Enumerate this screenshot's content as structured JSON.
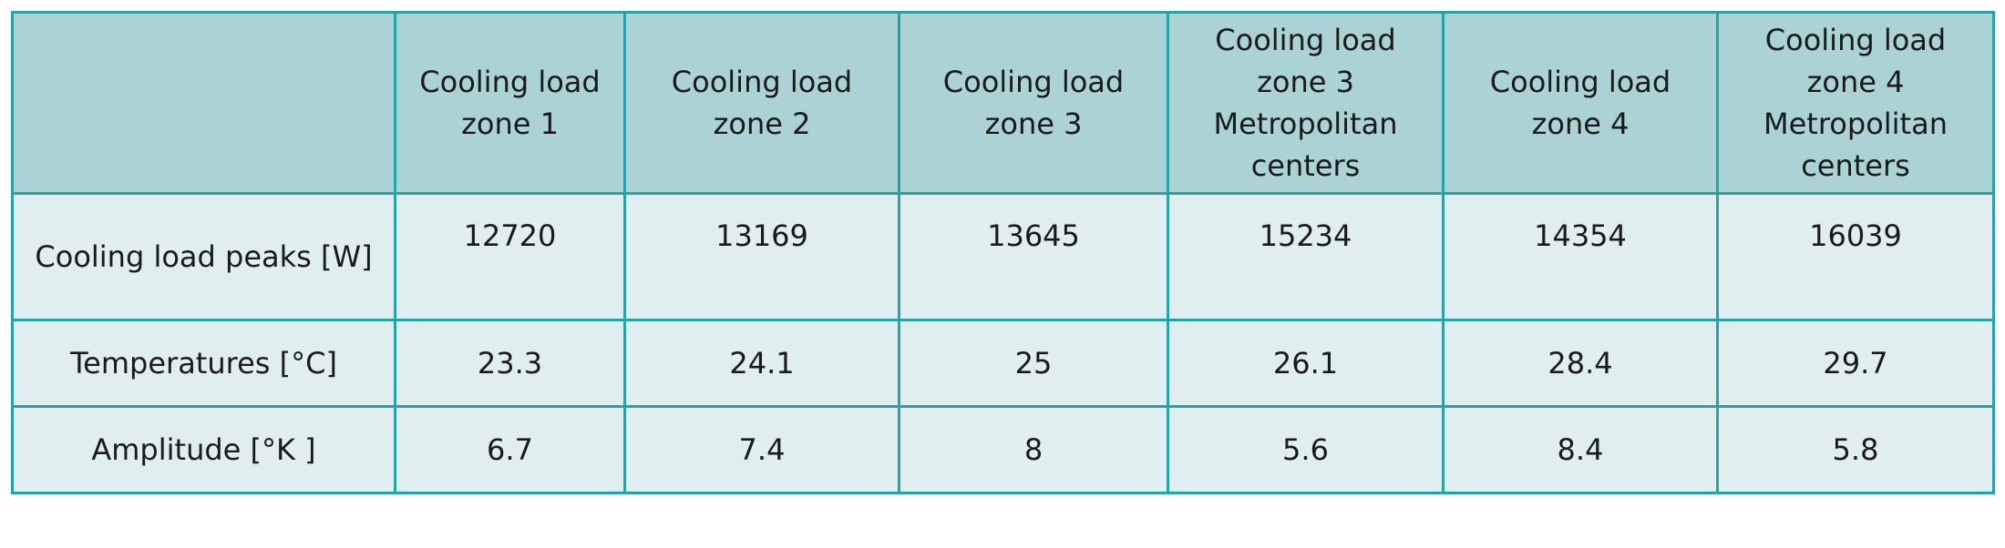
{
  "table": {
    "headers": [
      "",
      "Cooling load zone 1",
      "Cooling load zone 2",
      "Cooling load zone 3",
      "Cooling load zone 3 Metropolitan centers",
      "Cooling load zone 4",
      "Cooling load zone 4 Metropolitan centers"
    ],
    "rows": [
      {
        "label": "Cooling load peaks [W]",
        "values": [
          "12720",
          "13169",
          "13645",
          "15234",
          "14354",
          "16039"
        ]
      },
      {
        "label": "Temperatures [°C]",
        "values": [
          "23.3",
          "24.1",
          "25",
          "26.1",
          "28.4",
          "29.7"
        ]
      },
      {
        "label": "Amplitude [°K ]",
        "values": [
          "6.7",
          "7.4",
          "8",
          "5.6",
          "8.4",
          "5.8"
        ]
      }
    ]
  },
  "colors": {
    "header_bg": "#abd3d6",
    "body_bg": "#e0eeef",
    "border": "#2aa1a6"
  }
}
